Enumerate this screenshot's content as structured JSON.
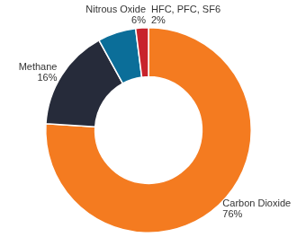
{
  "chart_data": {
    "type": "doughnut",
    "categories": [
      "Carbon Dioxide",
      "Methane",
      "Nitrous Oxide",
      "HFC, PFC, SF6"
    ],
    "values": [
      76,
      16,
      6,
      2
    ],
    "value_labels": [
      "76%",
      "16%",
      "6%",
      "2%"
    ],
    "colors": [
      "#f47b20",
      "#262b3a",
      "#0b6e99",
      "#c8232c"
    ],
    "data_labels": true
  }
}
